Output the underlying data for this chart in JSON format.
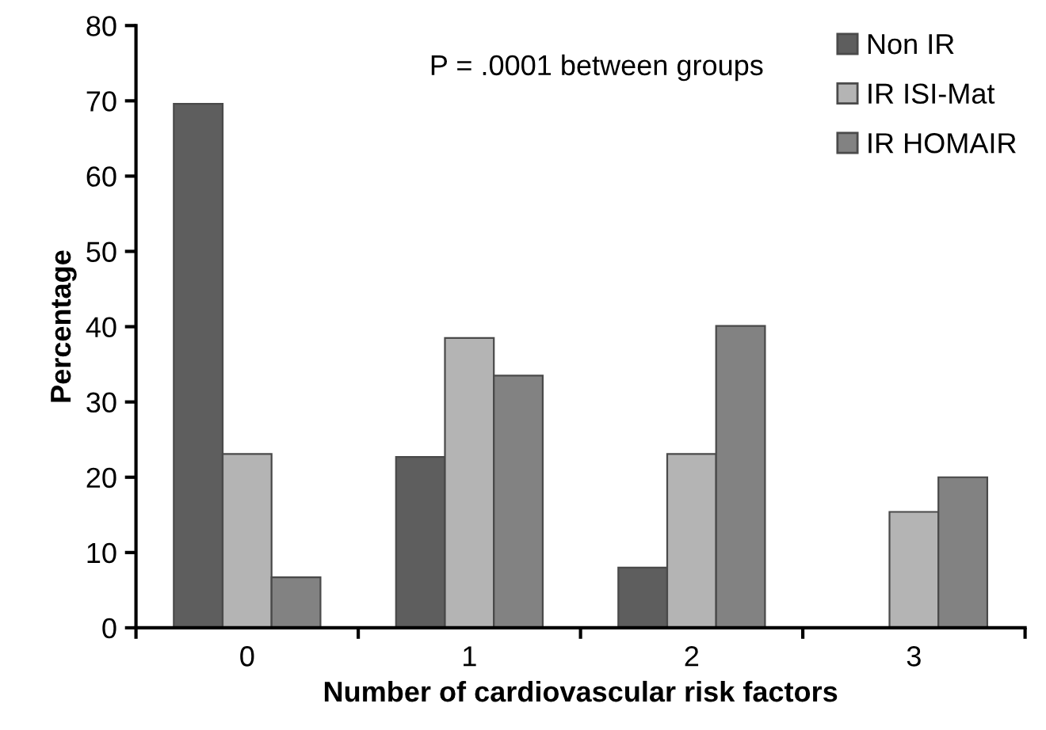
{
  "chart_data": {
    "type": "bar",
    "xlabel": "Number of cardiovascular risk factors",
    "ylabel": "Percentage",
    "categories": [
      "0",
      "1",
      "2",
      "3"
    ],
    "series": [
      {
        "name": "Non IR",
        "color": "#5e5e5e",
        "values": [
          69.6,
          22.7,
          8.0,
          null
        ]
      },
      {
        "name": "IR ISI-Mat",
        "color": "#b4b4b4",
        "values": [
          23.1,
          38.5,
          23.1,
          15.4
        ]
      },
      {
        "name": "IR HOMAIR",
        "color": "#828282",
        "values": [
          6.7,
          33.5,
          40.1,
          20.0
        ]
      }
    ],
    "ylim": [
      0,
      80
    ],
    "yticks": [
      0,
      10,
      20,
      30,
      40,
      50,
      60,
      70,
      80
    ],
    "grid": false,
    "legend": "top right",
    "annotations": [
      "P = .0001 between groups"
    ]
  }
}
